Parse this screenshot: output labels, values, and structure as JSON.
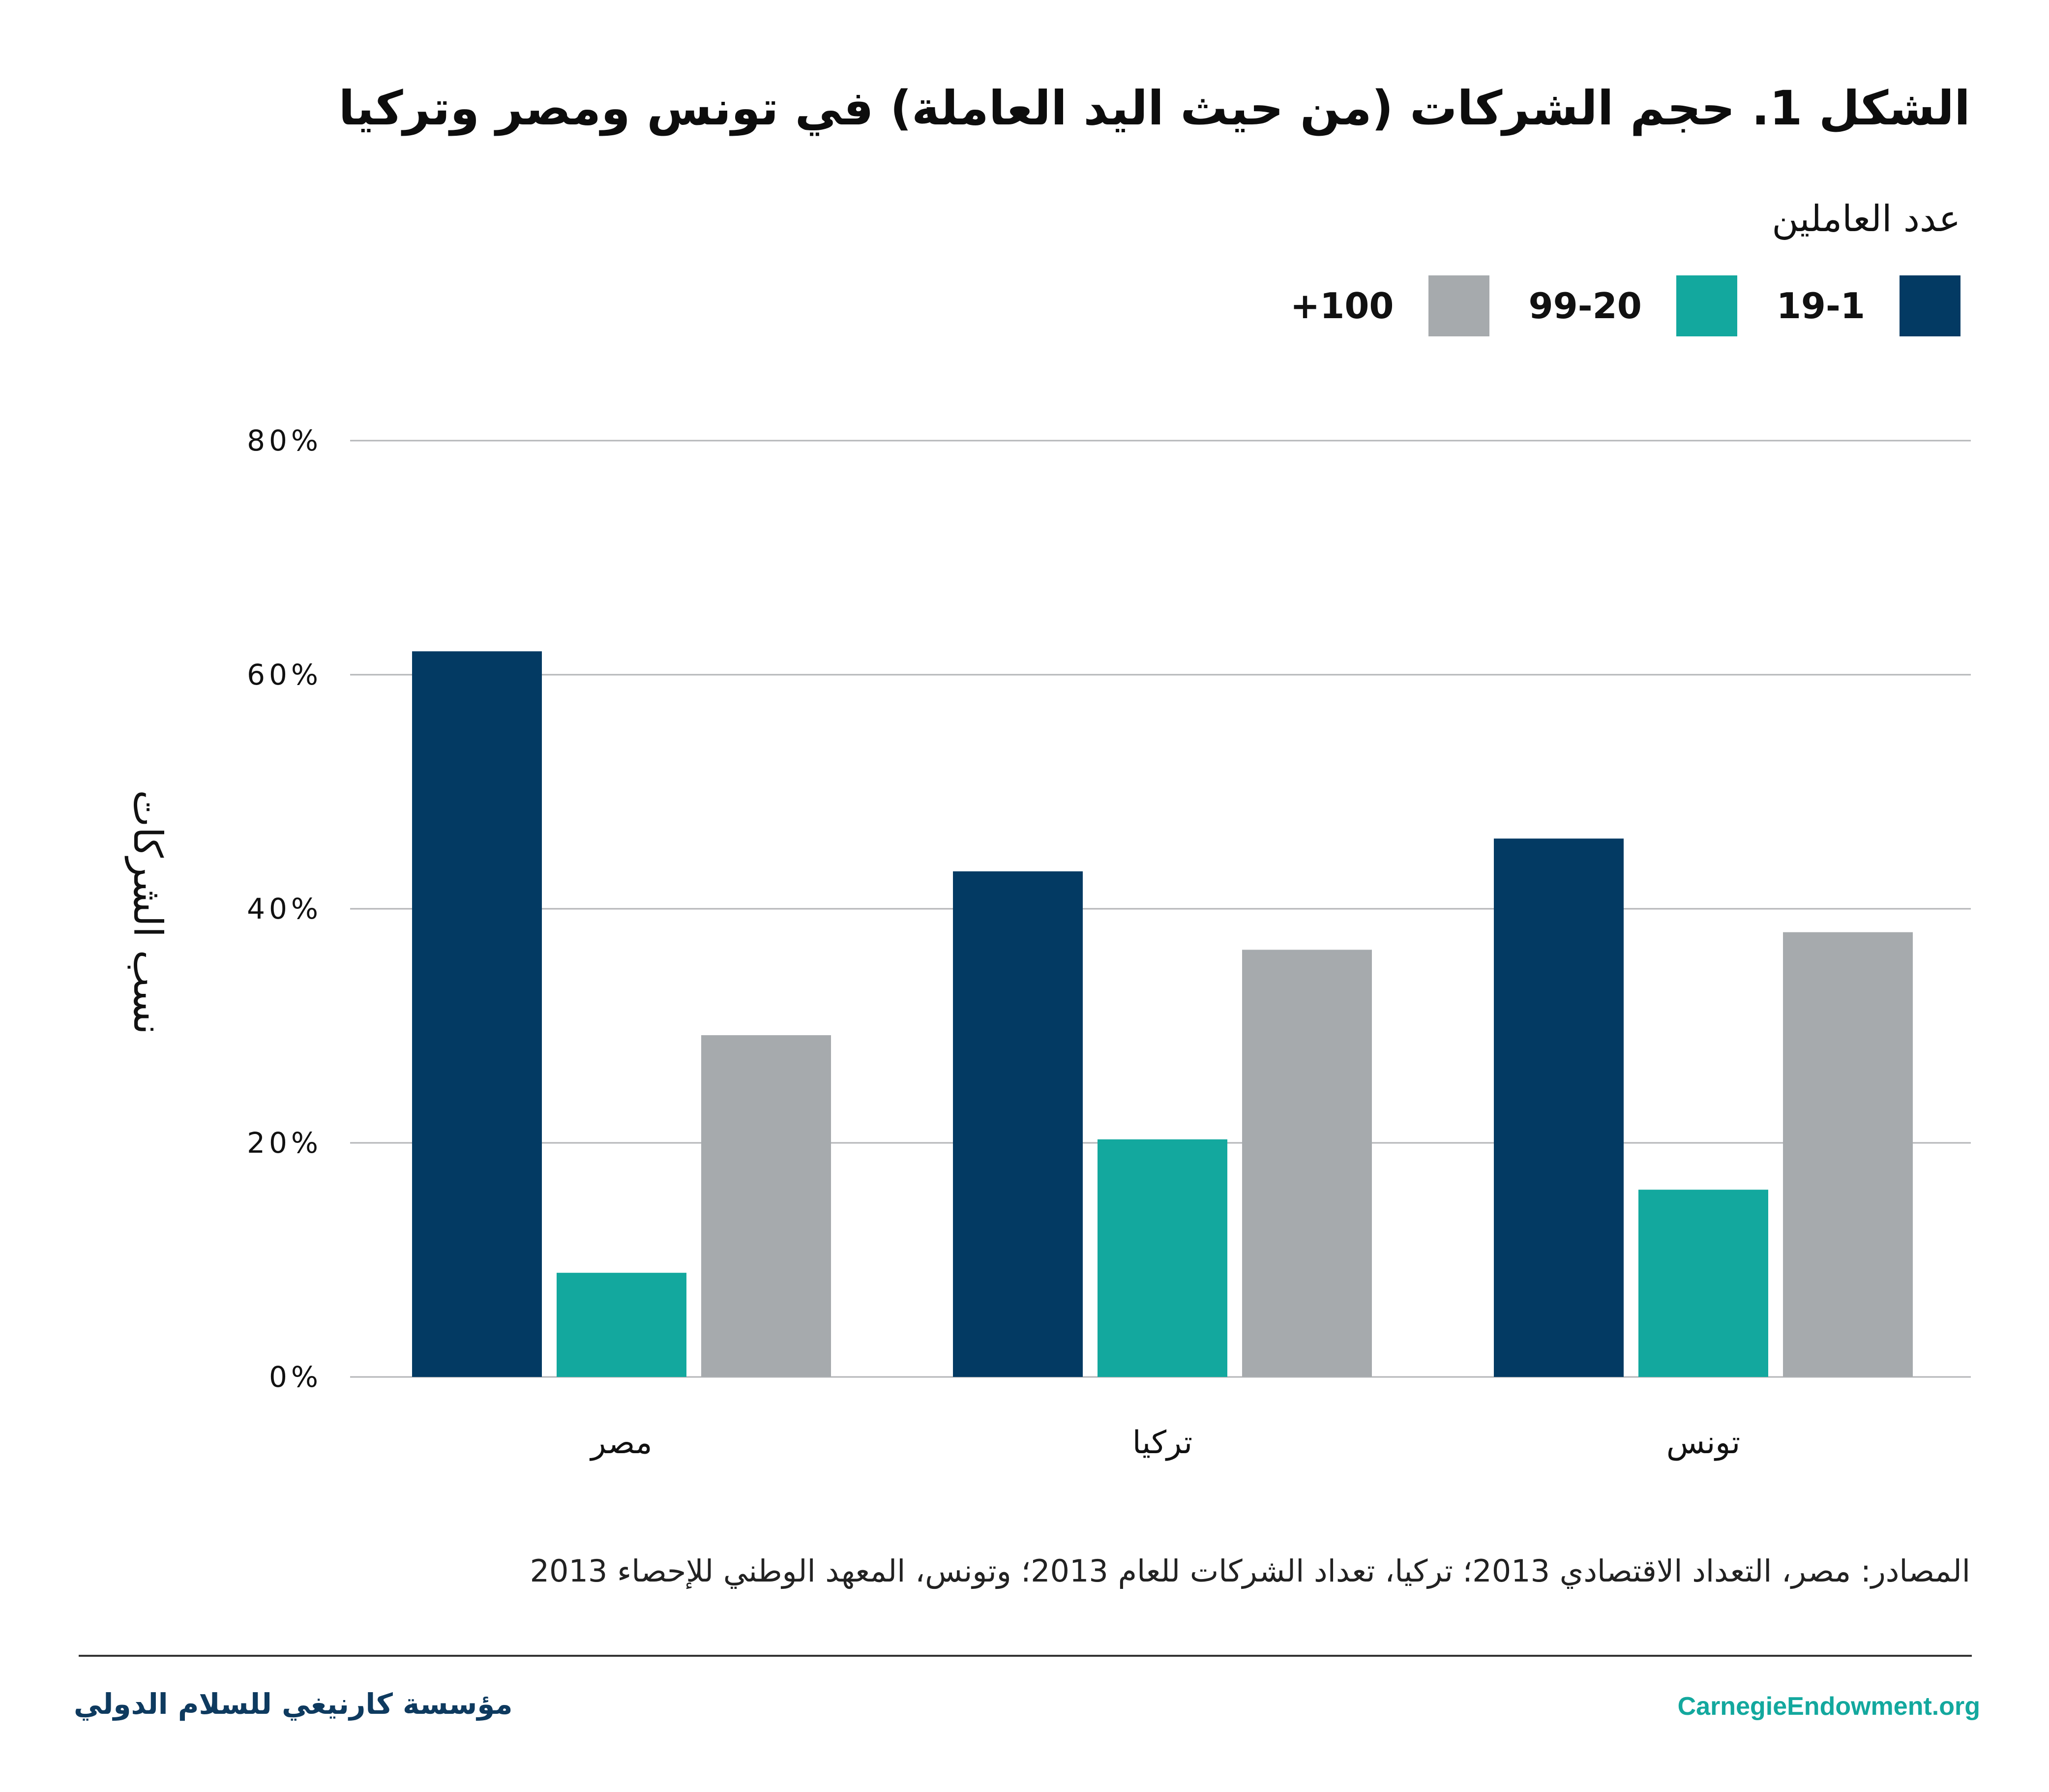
{
  "header": {
    "title": "الشكل 1. حجم الشركات (من حيث اليد العاملة) في تونس ومصر وتركيا"
  },
  "legend": {
    "title": "عدد العاملين",
    "items": [
      {
        "label": "19-1",
        "color": "#033A63"
      },
      {
        "label": "99-20",
        "color": "#13A89E"
      },
      {
        "label": "+100",
        "color": "#A6AAAD"
      }
    ]
  },
  "chart_data": {
    "type": "bar",
    "title": "الشكل 1. حجم الشركات (من حيث اليد العاملة) في تونس ومصر وتركيا",
    "xlabel": "",
    "ylabel": "نسب الشركات",
    "categories": [
      "مصر",
      "تركيا",
      "تونس"
    ],
    "series": [
      {
        "name": "19-1",
        "color": "#033A63",
        "values": [
          62.0,
          43.2,
          46.0
        ]
      },
      {
        "name": "99-20",
        "color": "#13A89E",
        "values": [
          8.9,
          20.3,
          16.0
        ]
      },
      {
        "name": "+100",
        "color": "#A6AAAD",
        "values": [
          29.2,
          36.5,
          38.0
        ]
      }
    ],
    "ylim": [
      0,
      80
    ],
    "yticks": [
      0,
      20,
      40,
      60,
      80
    ],
    "ytick_labels": [
      "0%",
      "20%",
      "40%",
      "60%",
      "80%"
    ],
    "grid": true,
    "legend_position": "top-right",
    "gridline_color": "#B4B6B8"
  },
  "source": "المصادر: مصر، التعداد الاقتصادي 2013؛ تركيا، تعداد الشركات للعام 2013؛ وتونس، المعهد الوطني للإحصاء 2013",
  "footer": {
    "org_arabic": "مؤسسة كارنيغي للسلام الدولي",
    "website": "CarnegieEndowment.org"
  }
}
